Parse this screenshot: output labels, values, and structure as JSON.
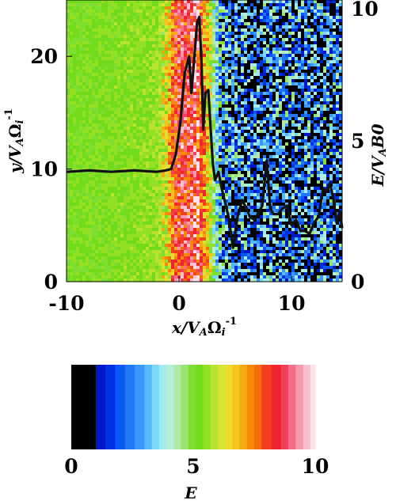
{
  "chart_data": [
    {
      "type": "heatmap",
      "title": "",
      "xlabel": "x/VₐΩᵢ⁻¹",
      "xlabel_parts": [
        "x/V",
        "A",
        "Ω",
        "i",
        "-1"
      ],
      "ylabel_parts": [
        "y/V",
        "A",
        "Ω",
        "i",
        "-1"
      ],
      "y2label_parts": [
        "E/V",
        "A",
        "B0"
      ],
      "xlim": [
        -10,
        14.5
      ],
      "ylim": [
        0,
        25
      ],
      "y2lim": [
        0,
        10
      ],
      "x_ticks": [
        -10,
        0,
        10
      ],
      "x_tick_labels": [
        "-10",
        "0",
        "10"
      ],
      "y_ticks": [
        0,
        10,
        20
      ],
      "y_tick_labels": [
        "0",
        "10",
        "20"
      ],
      "y2_ticks": [
        0,
        5,
        10
      ],
      "y2_tick_labels": [
        "0",
        "5",
        "10"
      ],
      "field_profile": {
        "description_levels": "E value (0-10 colormap) as function of x, uniform in y",
        "x": [
          -10,
          -2,
          -1.2,
          -0.8,
          -0.3,
          0.3,
          0.8,
          1.3,
          1.8,
          2.3,
          2.8,
          3.3,
          4,
          5,
          7,
          9,
          11,
          13,
          14.5
        ],
        "E": [
          5.2,
          5.5,
          6.0,
          6.9,
          8.2,
          8.6,
          8.3,
          8.8,
          8.1,
          7.2,
          5.8,
          3.8,
          2.5,
          2.2,
          2.0,
          2.2,
          2.0,
          2.3,
          2.0
        ]
      },
      "series": [
        {
          "axis": "right",
          "color": "#111111",
          "x": [
            -10,
            -8,
            -6,
            -4,
            -2,
            -1.2,
            -0.7,
            -0.3,
            0.1,
            0.5,
            0.9,
            1.1,
            1.35,
            1.6,
            1.8,
            2.0,
            2.15,
            2.35,
            2.6,
            2.8,
            3.0,
            3.2,
            3.5,
            3.8,
            4.1,
            4.4,
            4.8,
            5.2,
            5.6,
            6.0,
            6.3,
            6.7,
            7.0,
            7.4,
            7.8,
            8.1,
            8.4,
            8.8,
            9.2,
            9.6,
            10.0,
            10.4,
            10.8,
            11.2,
            11.6,
            12.0,
            12.4,
            12.8,
            13.1,
            13.4,
            13.7,
            14.0,
            14.3,
            14.5
          ],
          "y": [
            3.9,
            3.95,
            3.9,
            3.95,
            3.9,
            3.95,
            4.0,
            4.5,
            5.6,
            7.4,
            8.0,
            6.7,
            7.9,
            9.2,
            9.4,
            7.8,
            5.4,
            6.7,
            6.8,
            5.5,
            4.2,
            3.6,
            3.9,
            3.3,
            2.8,
            2.3,
            1.2,
            2.3,
            2.9,
            2.6,
            2.3,
            2.2,
            2.4,
            2.7,
            4.3,
            2.6,
            2.4,
            2.4,
            2.6,
            2.7,
            2.0,
            2.2,
            1.8,
            1.8,
            1.7,
            2.1,
            2.3,
            3.3,
            3.2,
            3.5,
            3.0,
            2.1,
            2.5,
            1.9
          ]
        }
      ]
    },
    {
      "type": "colorbar",
      "title": "",
      "xlabel": "E",
      "range": [
        0,
        10
      ],
      "ticks": [
        0,
        5,
        10
      ],
      "tick_labels": [
        "0",
        "5",
        "10"
      ],
      "segments": [
        {
          "from": 0.0,
          "to": 1.0,
          "color": "#000000"
        },
        {
          "from": 1.0,
          "to": 1.4,
          "color": "#0018c8"
        },
        {
          "from": 1.4,
          "to": 1.8,
          "color": "#0030e6"
        },
        {
          "from": 1.8,
          "to": 2.2,
          "color": "#0a58f2"
        },
        {
          "from": 2.2,
          "to": 2.6,
          "color": "#2078f6"
        },
        {
          "from": 2.6,
          "to": 3.0,
          "color": "#3a98f8"
        },
        {
          "from": 3.0,
          "to": 3.3,
          "color": "#56b8f8"
        },
        {
          "from": 3.3,
          "to": 3.6,
          "color": "#7ad8f6"
        },
        {
          "from": 3.6,
          "to": 3.9,
          "color": "#a2eaee"
        },
        {
          "from": 3.9,
          "to": 4.2,
          "color": "#b6f0d4"
        },
        {
          "from": 4.2,
          "to": 4.5,
          "color": "#b2eaa6"
        },
        {
          "from": 4.5,
          "to": 4.8,
          "color": "#98e470"
        },
        {
          "from": 4.8,
          "to": 5.1,
          "color": "#7ede32"
        },
        {
          "from": 5.1,
          "to": 5.4,
          "color": "#72dc1c"
        },
        {
          "from": 5.4,
          "to": 5.7,
          "color": "#94e024"
        },
        {
          "from": 5.7,
          "to": 6.0,
          "color": "#b8e430"
        },
        {
          "from": 6.0,
          "to": 6.3,
          "color": "#d6e636"
        },
        {
          "from": 6.3,
          "to": 6.6,
          "color": "#ecdc2a"
        },
        {
          "from": 6.6,
          "to": 6.9,
          "color": "#f6c41c"
        },
        {
          "from": 6.9,
          "to": 7.2,
          "color": "#f8a812"
        },
        {
          "from": 7.2,
          "to": 7.5,
          "color": "#f8880c"
        },
        {
          "from": 7.5,
          "to": 7.8,
          "color": "#f66a10"
        },
        {
          "from": 7.8,
          "to": 8.2,
          "color": "#f2401e"
        },
        {
          "from": 8.2,
          "to": 8.6,
          "color": "#ee2430"
        },
        {
          "from": 8.6,
          "to": 8.9,
          "color": "#f0405a"
        },
        {
          "from": 8.9,
          "to": 9.2,
          "color": "#f46e88"
        },
        {
          "from": 9.2,
          "to": 9.5,
          "color": "#f898b0"
        },
        {
          "from": 9.5,
          "to": 9.8,
          "color": "#fbc0d0"
        },
        {
          "from": 9.8,
          "to": 10.0,
          "color": "#fde2ea"
        }
      ]
    }
  ]
}
